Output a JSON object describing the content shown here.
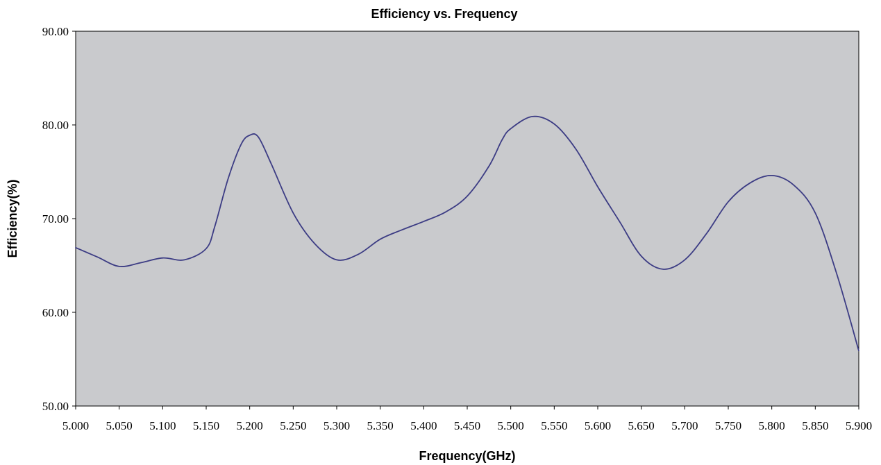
{
  "chart_data": {
    "type": "line",
    "title": "Efficiency vs. Frequency",
    "xlabel": "Frequency(GHz)",
    "ylabel": "Efficiency(%)",
    "xlim": [
      5.0,
      5.9
    ],
    "ylim": [
      50,
      90
    ],
    "x_ticks": [
      "5.000",
      "5.050",
      "5.100",
      "5.150",
      "5.200",
      "5.250",
      "5.300",
      "5.350",
      "5.400",
      "5.450",
      "5.500",
      "5.550",
      "5.600",
      "5.650",
      "5.700",
      "5.750",
      "5.800",
      "5.850",
      "5.900"
    ],
    "x_tick_values": [
      5.0,
      5.05,
      5.1,
      5.15,
      5.2,
      5.25,
      5.3,
      5.35,
      5.4,
      5.45,
      5.5,
      5.55,
      5.6,
      5.65,
      5.7,
      5.75,
      5.8,
      5.85,
      5.9
    ],
    "y_ticks": [
      "50.00",
      "60.00",
      "70.00",
      "80.00",
      "90.00"
    ],
    "y_tick_values": [
      50,
      60,
      70,
      80,
      90
    ],
    "grid": false,
    "legend": "none",
    "plot_background": "#c9cacd",
    "line_color": "#3c3c84",
    "series": [
      {
        "x": [
          5.0,
          5.025,
          5.05,
          5.075,
          5.1,
          5.125,
          5.15,
          5.16,
          5.175,
          5.19,
          5.2,
          5.21,
          5.225,
          5.25,
          5.275,
          5.3,
          5.325,
          5.35,
          5.375,
          5.4,
          5.425,
          5.45,
          5.475,
          5.49,
          5.5,
          5.525,
          5.55,
          5.575,
          5.6,
          5.625,
          5.65,
          5.675,
          5.7,
          5.725,
          5.75,
          5.775,
          5.8,
          5.825,
          5.85,
          5.875,
          5.9
        ],
        "y": [
          66.9,
          65.9,
          64.9,
          65.3,
          65.8,
          65.6,
          66.8,
          69.2,
          74.2,
          77.9,
          78.9,
          78.7,
          75.8,
          70.6,
          67.3,
          65.6,
          66.2,
          67.8,
          68.8,
          69.7,
          70.7,
          72.4,
          75.6,
          78.4,
          79.6,
          80.9,
          80.1,
          77.4,
          73.4,
          69.7,
          66.0,
          64.6,
          65.6,
          68.4,
          71.8,
          73.8,
          74.6,
          73.6,
          70.6,
          64.0,
          55.9
        ]
      }
    ]
  }
}
